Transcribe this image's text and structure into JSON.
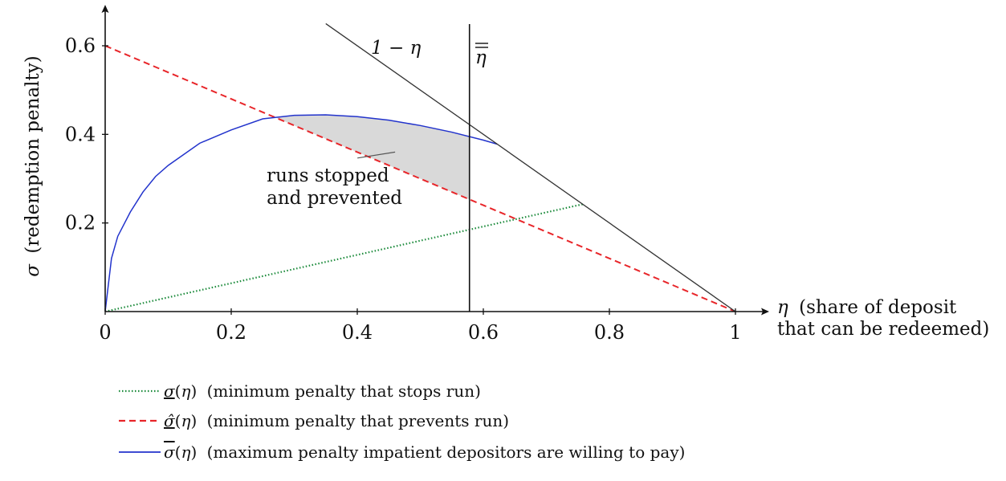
{
  "chart_data": {
    "type": "line",
    "xlabel_symbol": "η",
    "xlabel_line1": "(share of deposit",
    "xlabel_line2": "that can be redeemed)",
    "ylabel_symbol": "σ",
    "ylabel": "(redemption penalty)",
    "xlim": [
      0,
      1.03
    ],
    "ylim": [
      0,
      0.65
    ],
    "x_ticks": [
      0,
      0.2,
      0.4,
      0.6,
      0.8,
      1
    ],
    "x_tick_labels": [
      "0",
      "0.2",
      "0.4",
      "0.6",
      "0.8",
      "1"
    ],
    "y_ticks": [
      0.2,
      0.4,
      0.6
    ],
    "y_tick_labels": [
      "0.2",
      "0.4",
      "0.6"
    ],
    "eta_bar_value": 0.578,
    "eta_bar_label": "η",
    "one_minus_eta_label": "1 − η",
    "annotation": {
      "line1": "runs stopped",
      "line2": "and prevented",
      "text_at": [
        0.39,
        0.265
      ],
      "points_to": [
        0.46,
        0.36
      ]
    },
    "shaded_region": {
      "x_from": 0.273,
      "x_to": 0.578,
      "color": "#d9d9d9"
    },
    "series": [
      {
        "key": "sigma_min",
        "symbol": "σ",
        "name": "(minimum penalty that stops run)",
        "color": "#1a8a3a",
        "style": "dotted",
        "x": [
          0,
          0.1,
          0.2,
          0.3,
          0.4,
          0.5,
          0.6,
          0.7,
          0.76
        ],
        "y": [
          0,
          0.032,
          0.064,
          0.096,
          0.128,
          0.16,
          0.192,
          0.224,
          0.243
        ]
      },
      {
        "key": "sigma_hat",
        "symbol": "σ̂",
        "name": "(minimum penalty that prevents run)",
        "color": "#e8262a",
        "style": "dashed",
        "x": [
          0,
          0.2,
          0.4,
          0.6,
          0.8,
          1
        ],
        "y": [
          0.6,
          0.48,
          0.36,
          0.24,
          0.12,
          0
        ]
      },
      {
        "key": "sigma_bar",
        "symbol": "σ",
        "name": "(maximum penalty impatient depositors are willing to pay)",
        "color": "#2233cc",
        "style": "solid",
        "x": [
          0,
          0.01,
          0.02,
          0.04,
          0.06,
          0.08,
          0.1,
          0.15,
          0.2,
          0.25,
          0.3,
          0.35,
          0.4,
          0.45,
          0.5,
          0.55,
          0.6,
          0.622
        ],
        "y": [
          0,
          0.12,
          0.17,
          0.225,
          0.27,
          0.305,
          0.33,
          0.38,
          0.41,
          0.435,
          0.443,
          0.444,
          0.44,
          0.432,
          0.42,
          0.405,
          0.387,
          0.378
        ]
      },
      {
        "key": "one_minus_eta",
        "name": "1 − η",
        "color": "#333333",
        "style": "solid",
        "x": [
          0.35,
          1
        ],
        "y": [
          0.65,
          0
        ]
      }
    ]
  }
}
